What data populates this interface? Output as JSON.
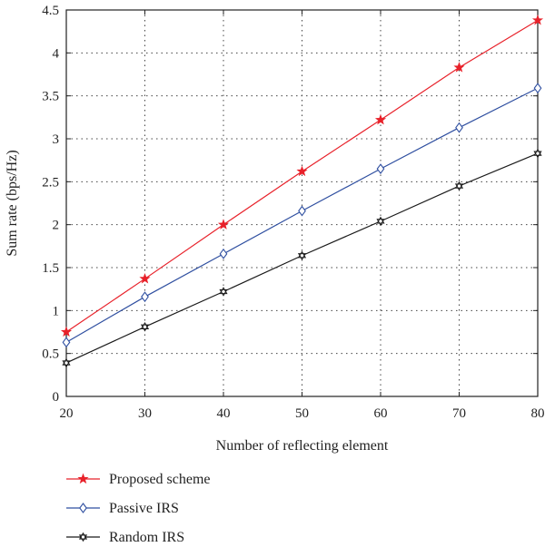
{
  "chart_data": {
    "type": "line",
    "title": "",
    "xlabel": "Number of reflecting element",
    "ylabel": "Sum rate (bps/Hz)",
    "x": [
      20,
      30,
      40,
      50,
      60,
      70,
      80
    ],
    "xlim": [
      20,
      80
    ],
    "ylim": [
      0,
      4.5
    ],
    "xticks": [
      "20",
      "30",
      "40",
      "50",
      "60",
      "70",
      "80"
    ],
    "yticks": [
      "0",
      "0.5",
      "1",
      "1.5",
      "2",
      "2.5",
      "3",
      "3.5",
      "4",
      "4.5"
    ],
    "grid": true,
    "legend_position": "bottom-left, below plot",
    "series": [
      {
        "name": "Proposed scheme",
        "color": "#e8212a",
        "marker": "star",
        "values": [
          0.75,
          1.37,
          2.0,
          2.62,
          3.22,
          3.83,
          4.38
        ]
      },
      {
        "name": "Passive IRS",
        "color": "#2f4fa0",
        "marker": "diamond",
        "values": [
          0.63,
          1.16,
          1.66,
          2.16,
          2.65,
          3.13,
          3.59
        ]
      },
      {
        "name": "Random IRS",
        "color": "#1a1a1a",
        "marker": "hexagram",
        "values": [
          0.39,
          0.81,
          1.22,
          1.64,
          2.04,
          2.45,
          2.83
        ]
      }
    ]
  }
}
